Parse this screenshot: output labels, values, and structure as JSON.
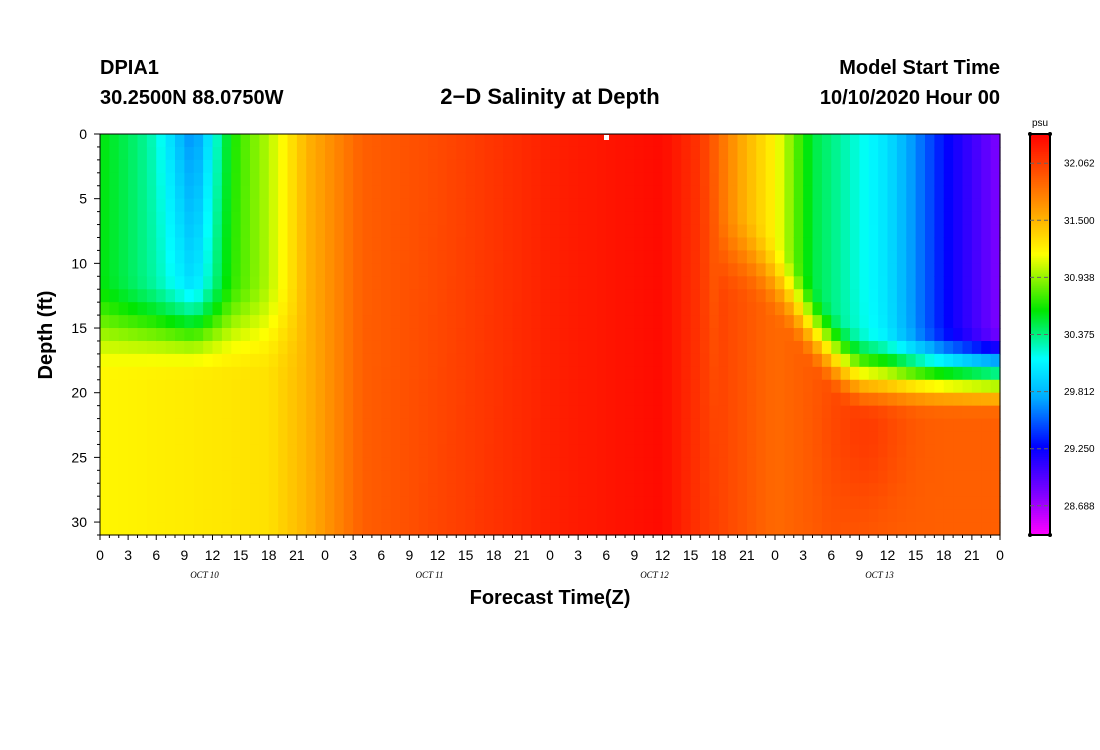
{
  "header": {
    "station": "DPIA1",
    "coords": "30.2500N 88.0750W",
    "title": "2−D Salinity at Depth",
    "model_start_label": "Model Start Time",
    "model_start_value": "10/10/2020 Hour 00"
  },
  "chart_data": {
    "type": "heatmap",
    "title": "2−D Salinity at Depth",
    "xlabel": "Forecast Time(Z)",
    "ylabel": "Depth (ft)",
    "x_range_hours": [
      0,
      96
    ],
    "y_range_ft": [
      0,
      31
    ],
    "x_tick_labels": [
      "0",
      "3",
      "6",
      "9",
      "12",
      "15",
      "18",
      "21",
      "0",
      "3",
      "6",
      "9",
      "12",
      "15",
      "18",
      "21",
      "0",
      "3",
      "6",
      "9",
      "12",
      "15",
      "18",
      "21",
      "0",
      "3",
      "6",
      "9",
      "12",
      "15",
      "18",
      "21",
      "0"
    ],
    "y_tick_labels": [
      "0",
      "5",
      "10",
      "15",
      "20",
      "25",
      "30"
    ],
    "day_labels": [
      "OCT 10",
      "OCT 11",
      "OCT 12",
      "OCT 13"
    ],
    "colorbar": {
      "unit": "psu",
      "min": 28.4,
      "max": 32.35,
      "tick_labels": [
        "32.062",
        "31.500",
        "30.938",
        "30.375",
        "29.812",
        "29.250",
        "28.688"
      ]
    },
    "approx_field_description_values": {
      "surface_profile": [
        [
          0,
          30.6
        ],
        [
          6,
          30.3
        ],
        [
          10,
          30.0
        ],
        [
          14,
          30.7
        ],
        [
          18,
          31.0
        ],
        [
          22,
          31.5
        ],
        [
          28,
          31.9
        ],
        [
          36,
          32.0
        ],
        [
          48,
          32.2
        ],
        [
          60,
          32.3
        ],
        [
          64,
          32.1
        ],
        [
          68,
          31.6
        ],
        [
          72,
          31.2
        ],
        [
          76,
          30.5
        ],
        [
          84,
          30.0
        ],
        [
          90,
          29.3
        ],
        [
          96,
          28.8
        ]
      ],
      "bottom_profile": [
        [
          0,
          31.2
        ],
        [
          18,
          31.3
        ],
        [
          22,
          31.5
        ],
        [
          28,
          31.9
        ],
        [
          48,
          32.2
        ],
        [
          60,
          32.3
        ],
        [
          64,
          32.1
        ],
        [
          72,
          31.85
        ],
        [
          78,
          31.95
        ],
        [
          84,
          31.9
        ],
        [
          96,
          31.9
        ]
      ]
    }
  }
}
